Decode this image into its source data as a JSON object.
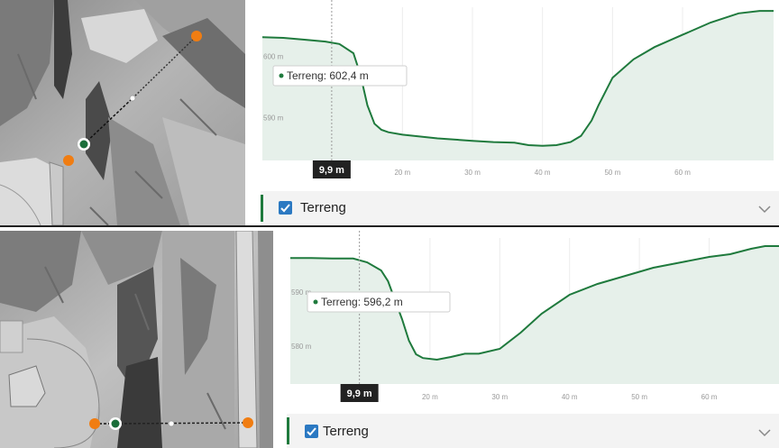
{
  "panels": [
    {
      "y_unit": "m",
      "x_unit": "m",
      "profile_ylim": [
        583,
        608
      ],
      "profile_xlim": [
        0,
        73
      ],
      "y_tick_labels": [
        "600 m",
        "590 m"
      ],
      "y_ticks": [
        600,
        590
      ],
      "x_tick_labels": [
        "20 m",
        "30 m",
        "40 m",
        "50 m",
        "60 m"
      ],
      "x_ticks": [
        20,
        30,
        40,
        50,
        60
      ],
      "profile_series": {
        "name": "Terreng",
        "x": [
          0,
          3,
          6,
          9,
          11,
          13,
          14,
          15,
          16,
          17,
          18,
          20,
          25,
          30,
          33,
          36,
          38,
          40,
          42,
          44,
          45.5,
          47,
          48,
          50,
          53,
          56,
          60,
          64,
          68,
          71,
          73
        ],
        "y": [
          603.1,
          603.0,
          602.7,
          602.4,
          602.0,
          600.5,
          597.0,
          592.0,
          589.0,
          588.0,
          587.6,
          587.2,
          586.6,
          586.2,
          586.0,
          585.9,
          585.5,
          585.4,
          585.5,
          586.0,
          587.0,
          589.5,
          592.0,
          596.5,
          599.5,
          601.5,
          603.5,
          605.5,
          607.0,
          607.4,
          607.4
        ]
      },
      "cursor": {
        "x": 9.9,
        "label": "9,9 m"
      },
      "tooltip": {
        "text": "Terreng: 602,4 m"
      },
      "legend": {
        "label": "Terreng",
        "checked": true
      }
    },
    {
      "y_unit": "m",
      "x_unit": "m",
      "profile_ylim": [
        573,
        600
      ],
      "profile_xlim": [
        0,
        70
      ],
      "y_tick_labels": [
        "590 m",
        "580 m"
      ],
      "y_ticks": [
        590,
        580
      ],
      "x_tick_labels": [
        "20 m",
        "30 m",
        "40 m",
        "50 m",
        "60 m"
      ],
      "x_ticks": [
        20,
        30,
        40,
        50,
        60
      ],
      "profile_series": {
        "name": "Terreng",
        "x": [
          0,
          3,
          6,
          9,
          11,
          13,
          14,
          15,
          16,
          17,
          18,
          19,
          21,
          23,
          25,
          27,
          30,
          33,
          36,
          40,
          44,
          48,
          52,
          56,
          60,
          63,
          66,
          68,
          70
        ],
        "y": [
          596.3,
          596.3,
          596.2,
          596.2,
          595.5,
          594.0,
          592.0,
          588.5,
          585.0,
          581.0,
          578.5,
          577.8,
          577.5,
          578.0,
          578.6,
          578.6,
          579.5,
          582.5,
          586.0,
          589.5,
          591.5,
          593.0,
          594.5,
          595.5,
          596.5,
          597.0,
          598.0,
          598.5,
          598.5
        ]
      },
      "cursor": {
        "x": 9.9,
        "label": "9,9 m"
      },
      "tooltip": {
        "text": "Terreng: 596,2 m"
      },
      "legend": {
        "label": "Terreng",
        "checked": true
      }
    }
  ],
  "colors": {
    "line": "#1f7a3d",
    "fill": "#e6f0ea",
    "checkbox": "#2b79c2",
    "orange_point": "#f07d12",
    "green_point": "#1b6e3a"
  }
}
